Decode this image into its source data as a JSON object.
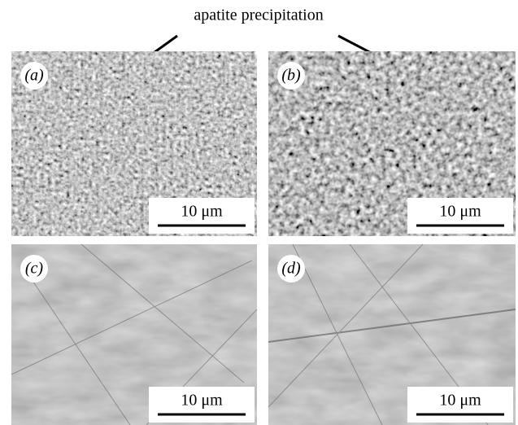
{
  "annotation": "apatite precipitation",
  "panels": [
    {
      "label": "(a)",
      "scale_bar": "10 μm"
    },
    {
      "label": "(b)",
      "scale_bar": "10 μm"
    },
    {
      "label": "(c)",
      "scale_bar": "10 μm"
    },
    {
      "label": "(d)",
      "scale_bar": "10 μm"
    }
  ]
}
